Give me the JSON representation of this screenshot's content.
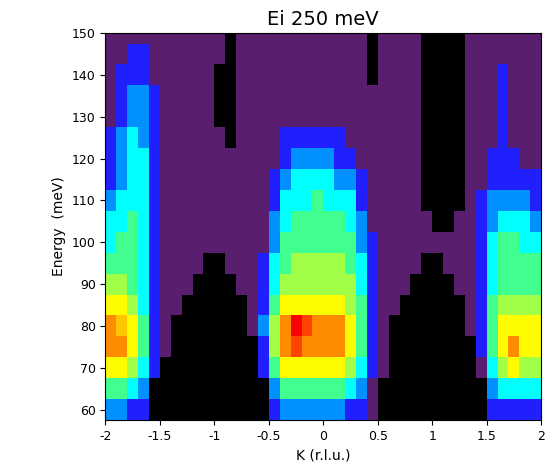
{
  "chart_data": {
    "type": "heatmap",
    "title": "Ei 250 meV",
    "x_label": "K (r.l.u.)",
    "y_label": "Energy  (meV)",
    "x": [
      -1.95,
      -1.85,
      -1.75,
      -1.65,
      -1.55,
      -1.45,
      -1.35,
      -1.25,
      -1.15,
      -1.05,
      -0.95,
      -0.85,
      -0.75,
      -0.65,
      -0.55,
      -0.45,
      -0.35,
      -0.25,
      -0.15,
      -0.05,
      0.05,
      0.15,
      0.25,
      0.35,
      0.45,
      0.55,
      0.65,
      0.75,
      0.85,
      0.95,
      1.05,
      1.15,
      1.25,
      1.35,
      1.45,
      1.55,
      1.65,
      1.75,
      1.85,
      1.95
    ],
    "y": [
      60,
      65,
      70,
      75,
      80,
      85,
      90,
      95,
      100,
      105,
      110,
      115,
      120,
      125,
      130,
      135,
      140,
      145,
      150
    ],
    "values": [
      [
        4,
        4,
        3,
        3,
        null,
        null,
        null,
        null,
        null,
        null,
        null,
        null,
        null,
        null,
        null,
        3,
        4,
        4,
        4,
        4,
        4,
        4,
        3,
        3,
        2,
        null,
        null,
        null,
        null,
        null,
        null,
        null,
        null,
        null,
        null,
        3,
        3,
        3,
        3,
        3
      ],
      [
        6,
        6,
        5,
        4,
        null,
        null,
        null,
        null,
        null,
        null,
        null,
        null,
        null,
        null,
        null,
        4,
        6,
        6,
        6,
        6,
        6,
        6,
        5,
        4,
        2,
        null,
        null,
        null,
        null,
        null,
        null,
        null,
        null,
        null,
        null,
        4,
        5,
        5,
        5,
        5
      ],
      [
        8,
        8,
        7,
        5,
        3,
        null,
        null,
        null,
        null,
        null,
        null,
        null,
        null,
        null,
        3,
        6,
        8,
        8,
        8,
        8,
        8,
        8,
        7,
        5,
        3,
        2,
        null,
        null,
        null,
        null,
        null,
        null,
        null,
        null,
        2,
        5,
        7,
        8,
        7,
        7
      ],
      [
        9,
        9,
        8,
        6,
        3,
        2,
        null,
        null,
        null,
        null,
        null,
        null,
        null,
        null,
        3,
        7,
        9,
        9.5,
        9,
        9,
        9,
        9,
        8,
        6,
        3,
        2,
        null,
        null,
        null,
        null,
        null,
        null,
        null,
        null,
        3,
        6,
        8,
        9,
        8,
        8
      ],
      [
        9,
        8.5,
        8,
        6,
        3,
        2,
        null,
        null,
        null,
        null,
        null,
        null,
        null,
        2,
        4,
        7,
        9,
        10,
        9.5,
        9,
        9,
        9,
        8,
        6,
        3,
        2,
        null,
        null,
        null,
        null,
        null,
        null,
        null,
        2,
        3,
        6,
        8,
        8,
        8,
        8
      ],
      [
        8,
        8,
        7,
        5,
        3,
        2,
        2,
        null,
        null,
        null,
        null,
        null,
        null,
        2,
        3,
        6,
        8,
        8,
        8,
        8,
        8,
        8,
        7,
        6,
        3,
        2,
        2,
        null,
        null,
        null,
        null,
        null,
        null,
        2,
        3,
        6,
        7,
        7,
        7,
        7
      ],
      [
        7,
        7,
        6,
        5,
        3,
        2,
        2,
        2,
        null,
        null,
        null,
        null,
        2,
        2,
        3,
        5,
        7,
        7,
        7,
        7,
        7,
        7,
        7,
        5,
        3,
        2,
        2,
        2,
        null,
        null,
        null,
        null,
        2,
        2,
        3,
        5,
        6,
        6,
        6,
        6
      ],
      [
        6,
        6,
        6,
        5,
        3,
        2,
        2,
        2,
        2,
        null,
        null,
        2,
        2,
        2,
        3,
        5,
        6,
        7,
        7,
        7,
        7,
        7,
        6,
        5,
        3,
        2,
        2,
        2,
        2,
        null,
        null,
        2,
        2,
        2,
        3,
        5,
        6,
        6,
        6,
        6
      ],
      [
        5,
        6,
        6,
        5,
        3,
        2,
        2,
        2,
        2,
        2,
        2,
        2,
        2,
        2,
        2,
        4,
        6,
        6,
        6,
        6,
        6,
        6,
        6,
        4,
        3,
        2,
        2,
        2,
        2,
        2,
        2,
        2,
        2,
        2,
        3,
        5,
        6,
        6,
        5,
        5
      ],
      [
        5,
        5,
        6,
        5,
        3,
        2,
        2,
        2,
        2,
        2,
        2,
        2,
        2,
        2,
        2,
        4,
        5,
        6,
        6,
        6,
        6,
        6,
        5,
        4,
        2,
        2,
        2,
        2,
        2,
        2,
        null,
        null,
        2,
        2,
        3,
        4,
        5,
        5,
        5,
        4
      ],
      [
        4,
        5,
        5,
        5,
        3,
        2,
        2,
        2,
        2,
        2,
        2,
        2,
        2,
        2,
        2,
        3,
        5,
        5,
        5,
        6,
        5,
        5,
        5,
        3,
        2,
        2,
        2,
        2,
        2,
        null,
        null,
        null,
        null,
        2,
        3,
        4,
        4,
        4,
        4,
        3
      ],
      [
        3,
        4,
        5,
        5,
        3,
        2,
        2,
        2,
        2,
        2,
        2,
        2,
        2,
        2,
        2,
        3,
        4,
        5,
        5,
        5,
        5,
        4,
        4,
        3,
        2,
        2,
        2,
        2,
        2,
        null,
        null,
        null,
        null,
        2,
        2,
        3,
        3,
        3,
        3,
        3
      ],
      [
        3,
        4,
        5,
        5,
        3,
        2,
        2,
        2,
        2,
        2,
        2,
        2,
        2,
        2,
        2,
        2,
        3,
        4,
        4,
        4,
        4,
        3,
        3,
        2,
        2,
        2,
        2,
        2,
        2,
        null,
        null,
        null,
        null,
        2,
        2,
        3,
        3,
        3,
        2,
        2
      ],
      [
        3,
        4,
        5,
        4,
        3,
        2,
        2,
        2,
        2,
        2,
        2,
        null,
        2,
        2,
        2,
        2,
        3,
        3,
        3,
        3,
        3,
        3,
        2,
        2,
        2,
        2,
        2,
        2,
        2,
        null,
        null,
        null,
        null,
        2,
        2,
        2,
        3,
        2,
        2,
        2
      ],
      [
        2,
        3,
        4,
        4,
        3,
        2,
        2,
        2,
        2,
        2,
        null,
        null,
        2,
        2,
        2,
        2,
        2,
        2,
        2,
        2,
        2,
        2,
        2,
        2,
        2,
        2,
        2,
        2,
        2,
        null,
        null,
        null,
        null,
        2,
        2,
        2,
        3,
        2,
        2,
        2
      ],
      [
        2,
        3,
        4,
        4,
        3,
        2,
        2,
        2,
        2,
        2,
        null,
        null,
        2,
        2,
        2,
        2,
        2,
        2,
        2,
        2,
        2,
        2,
        2,
        2,
        2,
        2,
        2,
        2,
        2,
        null,
        null,
        null,
        null,
        2,
        2,
        2,
        3,
        2,
        2,
        2
      ],
      [
        2,
        3,
        3,
        3,
        2,
        2,
        2,
        2,
        2,
        2,
        null,
        null,
        2,
        2,
        2,
        2,
        2,
        2,
        2,
        2,
        2,
        2,
        2,
        2,
        null,
        2,
        2,
        2,
        2,
        null,
        null,
        null,
        null,
        2,
        2,
        2,
        3,
        2,
        2,
        2
      ],
      [
        2,
        2,
        3,
        3,
        2,
        2,
        2,
        2,
        2,
        2,
        2,
        null,
        2,
        2,
        2,
        2,
        2,
        2,
        2,
        2,
        2,
        2,
        2,
        2,
        null,
        2,
        2,
        2,
        2,
        null,
        null,
        null,
        null,
        2,
        2,
        2,
        2,
        2,
        2,
        2
      ],
      [
        2,
        2,
        2,
        2,
        2,
        2,
        2,
        2,
        2,
        2,
        2,
        null,
        2,
        2,
        2,
        2,
        2,
        2,
        2,
        2,
        2,
        2,
        2,
        2,
        null,
        2,
        2,
        2,
        2,
        null,
        null,
        null,
        null,
        2,
        2,
        2,
        2,
        2,
        2,
        2
      ]
    ],
    "xlim": [
      -2,
      2
    ],
    "ylim": [
      57.5,
      150
    ],
    "xticks": [
      -2,
      -1.5,
      -1,
      -0.5,
      0,
      0.5,
      1,
      1.5,
      2
    ],
    "yticks": [
      60,
      70,
      80,
      90,
      100,
      110,
      120,
      130,
      140,
      150
    ]
  }
}
